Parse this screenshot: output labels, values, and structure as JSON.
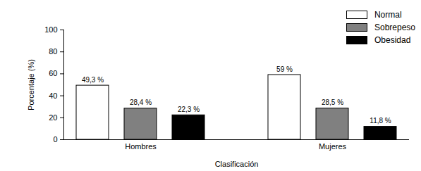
{
  "chart_data": {
    "type": "bar",
    "categories": [
      "Hombres",
      "Mujeres"
    ],
    "series": [
      {
        "name": "Normal",
        "color": "#ffffff",
        "values": [
          49.3,
          59
        ],
        "value_labels": [
          "49,3 %",
          "59 %"
        ]
      },
      {
        "name": "Sobrepeso",
        "color": "#808080",
        "values": [
          28.4,
          28.5
        ],
        "value_labels": [
          "28,4 %",
          "28,5 %"
        ]
      },
      {
        "name": "Obesidad",
        "color": "#000000",
        "values": [
          22.3,
          11.8
        ],
        "value_labels": [
          "22,3 %",
          "11,8 %"
        ]
      }
    ],
    "xlabel": "Clasificación",
    "ylabel": "Porcentaje (%)",
    "ylim": [
      0,
      100
    ],
    "yticks": [
      0,
      20,
      40,
      60,
      80,
      100
    ],
    "grid": false,
    "legend": "top-right",
    "data_labels": true
  }
}
